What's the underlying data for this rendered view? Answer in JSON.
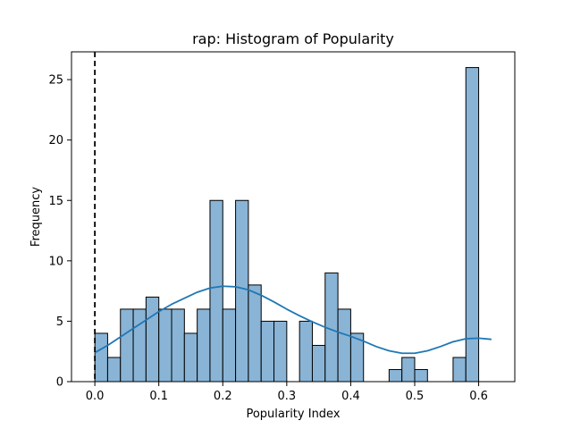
{
  "chart_data": {
    "type": "bar",
    "title": "rap: Histogram of Popularity",
    "xlabel": "Popularity Index",
    "ylabel": "Frequency",
    "xlim": [
      -0.0365,
      0.6565
    ],
    "ylim": [
      0,
      27.3
    ],
    "xticks": [
      0.0,
      0.1,
      0.2,
      0.3,
      0.4,
      0.5,
      0.6
    ],
    "xtick_labels": [
      "0.0",
      "0.1",
      "0.2",
      "0.3",
      "0.4",
      "0.5",
      "0.6"
    ],
    "yticks": [
      0,
      5,
      10,
      15,
      20,
      25
    ],
    "ytick_labels": [
      "0",
      "5",
      "10",
      "15",
      "20",
      "25"
    ],
    "bin_start": 0.0,
    "bin_width": 0.02,
    "counts": [
      4,
      2,
      6,
      6,
      7,
      6,
      6,
      4,
      6,
      15,
      6,
      15,
      8,
      5,
      5,
      0,
      5,
      3,
      9,
      6,
      4,
      0,
      0,
      1,
      2,
      1,
      0,
      0,
      2,
      26
    ],
    "bar_color": "#89b4d6",
    "edge_color": "#000000",
    "kde": {
      "color": "#1f77b4",
      "x": [
        0.0,
        0.02,
        0.04,
        0.06,
        0.08,
        0.1,
        0.12,
        0.14,
        0.16,
        0.18,
        0.2,
        0.22,
        0.24,
        0.26,
        0.28,
        0.3,
        0.32,
        0.34,
        0.36,
        0.38,
        0.4,
        0.42,
        0.44,
        0.46,
        0.48,
        0.5,
        0.52,
        0.54,
        0.56,
        0.58,
        0.6,
        0.62
      ],
      "y": [
        2.4,
        3.0,
        3.7,
        4.4,
        5.1,
        5.8,
        6.4,
        6.9,
        7.4,
        7.75,
        7.9,
        7.85,
        7.6,
        7.15,
        6.6,
        6.0,
        5.45,
        4.95,
        4.5,
        4.1,
        3.75,
        3.35,
        2.9,
        2.55,
        2.35,
        2.35,
        2.55,
        2.9,
        3.3,
        3.55,
        3.6,
        3.5
      ]
    },
    "reference_line": {
      "x": 0.0,
      "style": "dashed",
      "color": "#000000"
    },
    "grid": false,
    "legend": "none"
  }
}
